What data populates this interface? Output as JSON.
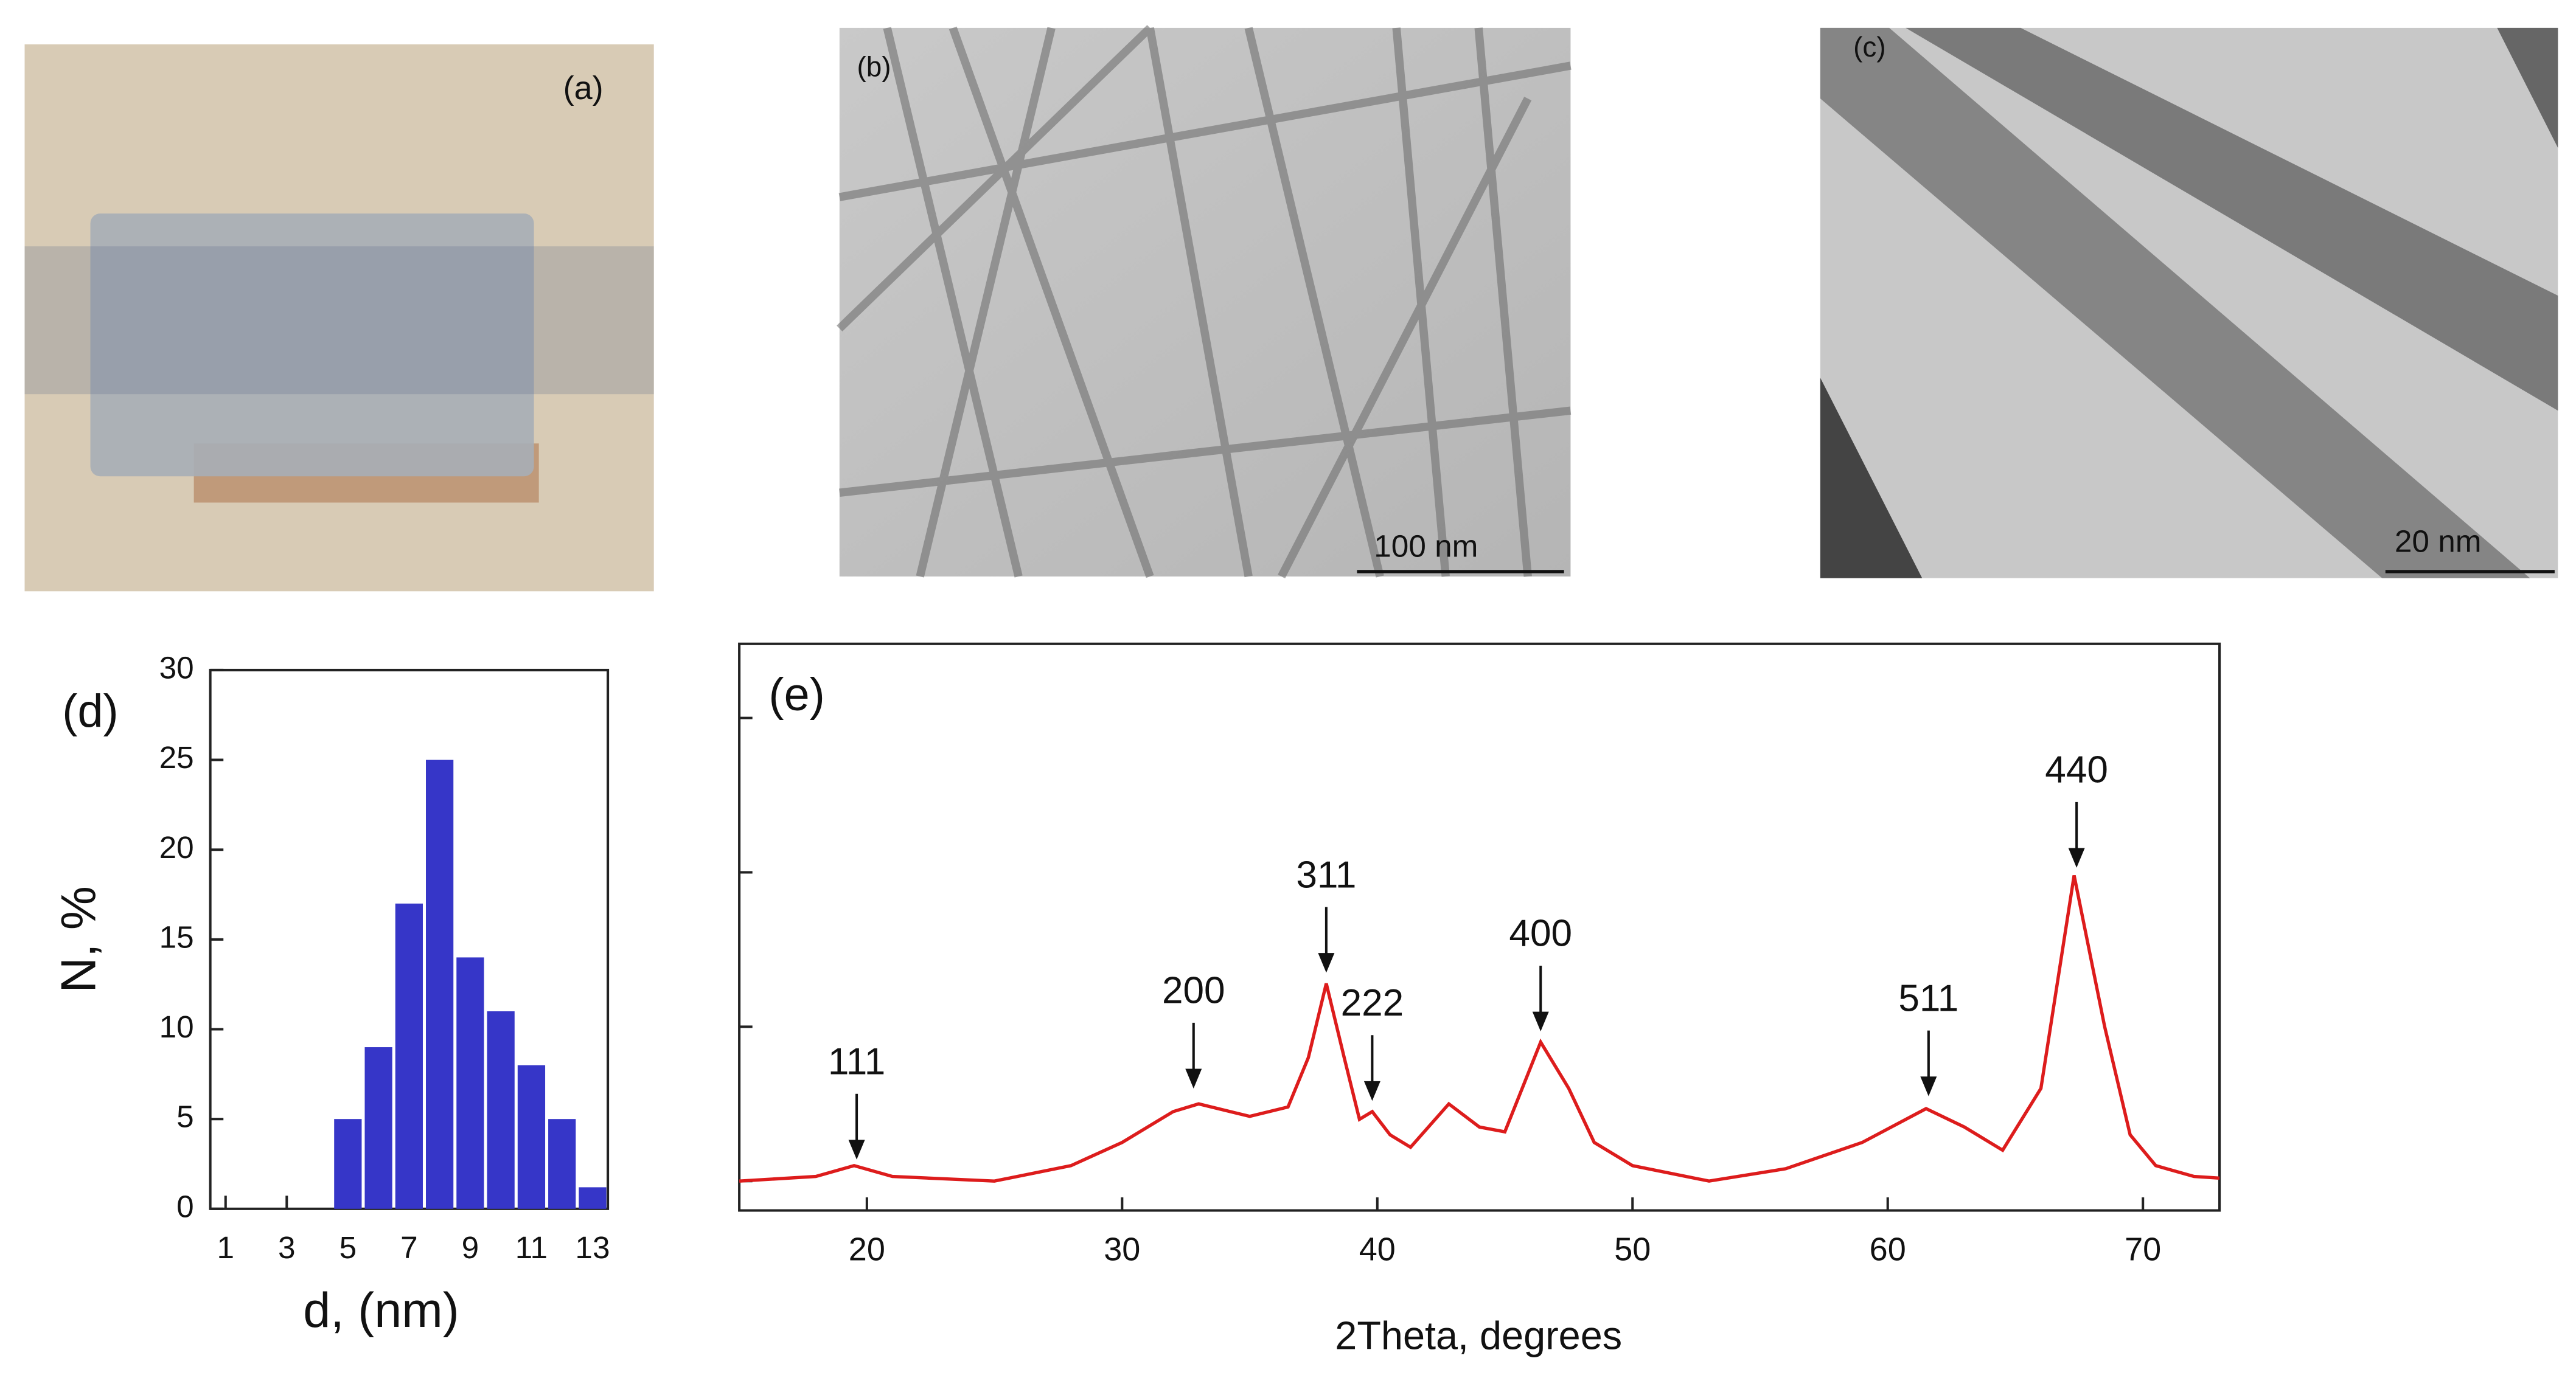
{
  "panels": [
    {
      "label": "(a)"
    },
    {
      "label": "(b)",
      "scale_bar": "100 nm"
    },
    {
      "label": "(c)",
      "scale_bar": "20 nm"
    }
  ],
  "chart_data": [
    {
      "type": "bar",
      "panel": "(d)",
      "xlabel": "d, (nm)",
      "ylabel": "N, %",
      "x": [
        5,
        6,
        7,
        8,
        9,
        10,
        11,
        12,
        13
      ],
      "values": [
        5,
        9,
        17,
        25,
        14,
        11,
        8,
        5,
        1.2
      ],
      "color": "#3636c8",
      "xlim": [
        0.5,
        13.5
      ],
      "xticks": [
        1,
        3,
        5,
        7,
        9,
        11,
        13
      ],
      "ylim": [
        0,
        30
      ],
      "yticks": [
        0,
        5,
        10,
        15,
        20,
        25,
        30
      ]
    },
    {
      "type": "line",
      "panel": "(e)",
      "xlabel": "2Theta, degrees",
      "color": "#dd1c1c",
      "x": [
        15,
        18,
        19.5,
        21,
        25,
        28,
        30,
        32,
        33,
        35,
        36.5,
        37.3,
        38,
        38.7,
        39.3,
        39.8,
        40.5,
        41.3,
        42.8,
        44,
        45,
        46.4,
        47.5,
        48.5,
        50,
        53,
        56,
        59,
        61.5,
        63,
        64.5,
        66,
        67.3,
        68.5,
        69.5,
        70.5,
        72,
        73
      ],
      "values": [
        0,
        0.03,
        0.1,
        0.03,
        0,
        0.1,
        0.25,
        0.45,
        0.5,
        0.42,
        0.48,
        0.8,
        1.28,
        0.8,
        0.4,
        0.45,
        0.3,
        0.22,
        0.5,
        0.35,
        0.32,
        0.9,
        0.6,
        0.25,
        0.1,
        0,
        0.08,
        0.25,
        0.47,
        0.35,
        0.2,
        0.6,
        1.98,
        1,
        0.3,
        0.1,
        0.03,
        0.02
      ],
      "xlim": [
        15,
        73
      ],
      "xticks": [
        20,
        30,
        40,
        50,
        60,
        70
      ],
      "ylim": [
        -0.19,
        3.48
      ],
      "yticks": [
        0,
        1,
        2,
        3
      ],
      "ytick_labels_visible": false,
      "annotations": [
        {
          "text": "111",
          "x": 19.6,
          "y": 0.14
        },
        {
          "text": "200",
          "x": 32.8,
          "y": 0.6
        },
        {
          "text": "311",
          "x": 38,
          "y": 1.35
        },
        {
          "text": "222",
          "x": 39.8,
          "y": 0.52
        },
        {
          "text": "400",
          "x": 46.4,
          "y": 0.97
        },
        {
          "text": "511",
          "x": 61.6,
          "y": 0.55
        },
        {
          "text": "440",
          "x": 67.4,
          "y": 2.03
        }
      ]
    }
  ]
}
